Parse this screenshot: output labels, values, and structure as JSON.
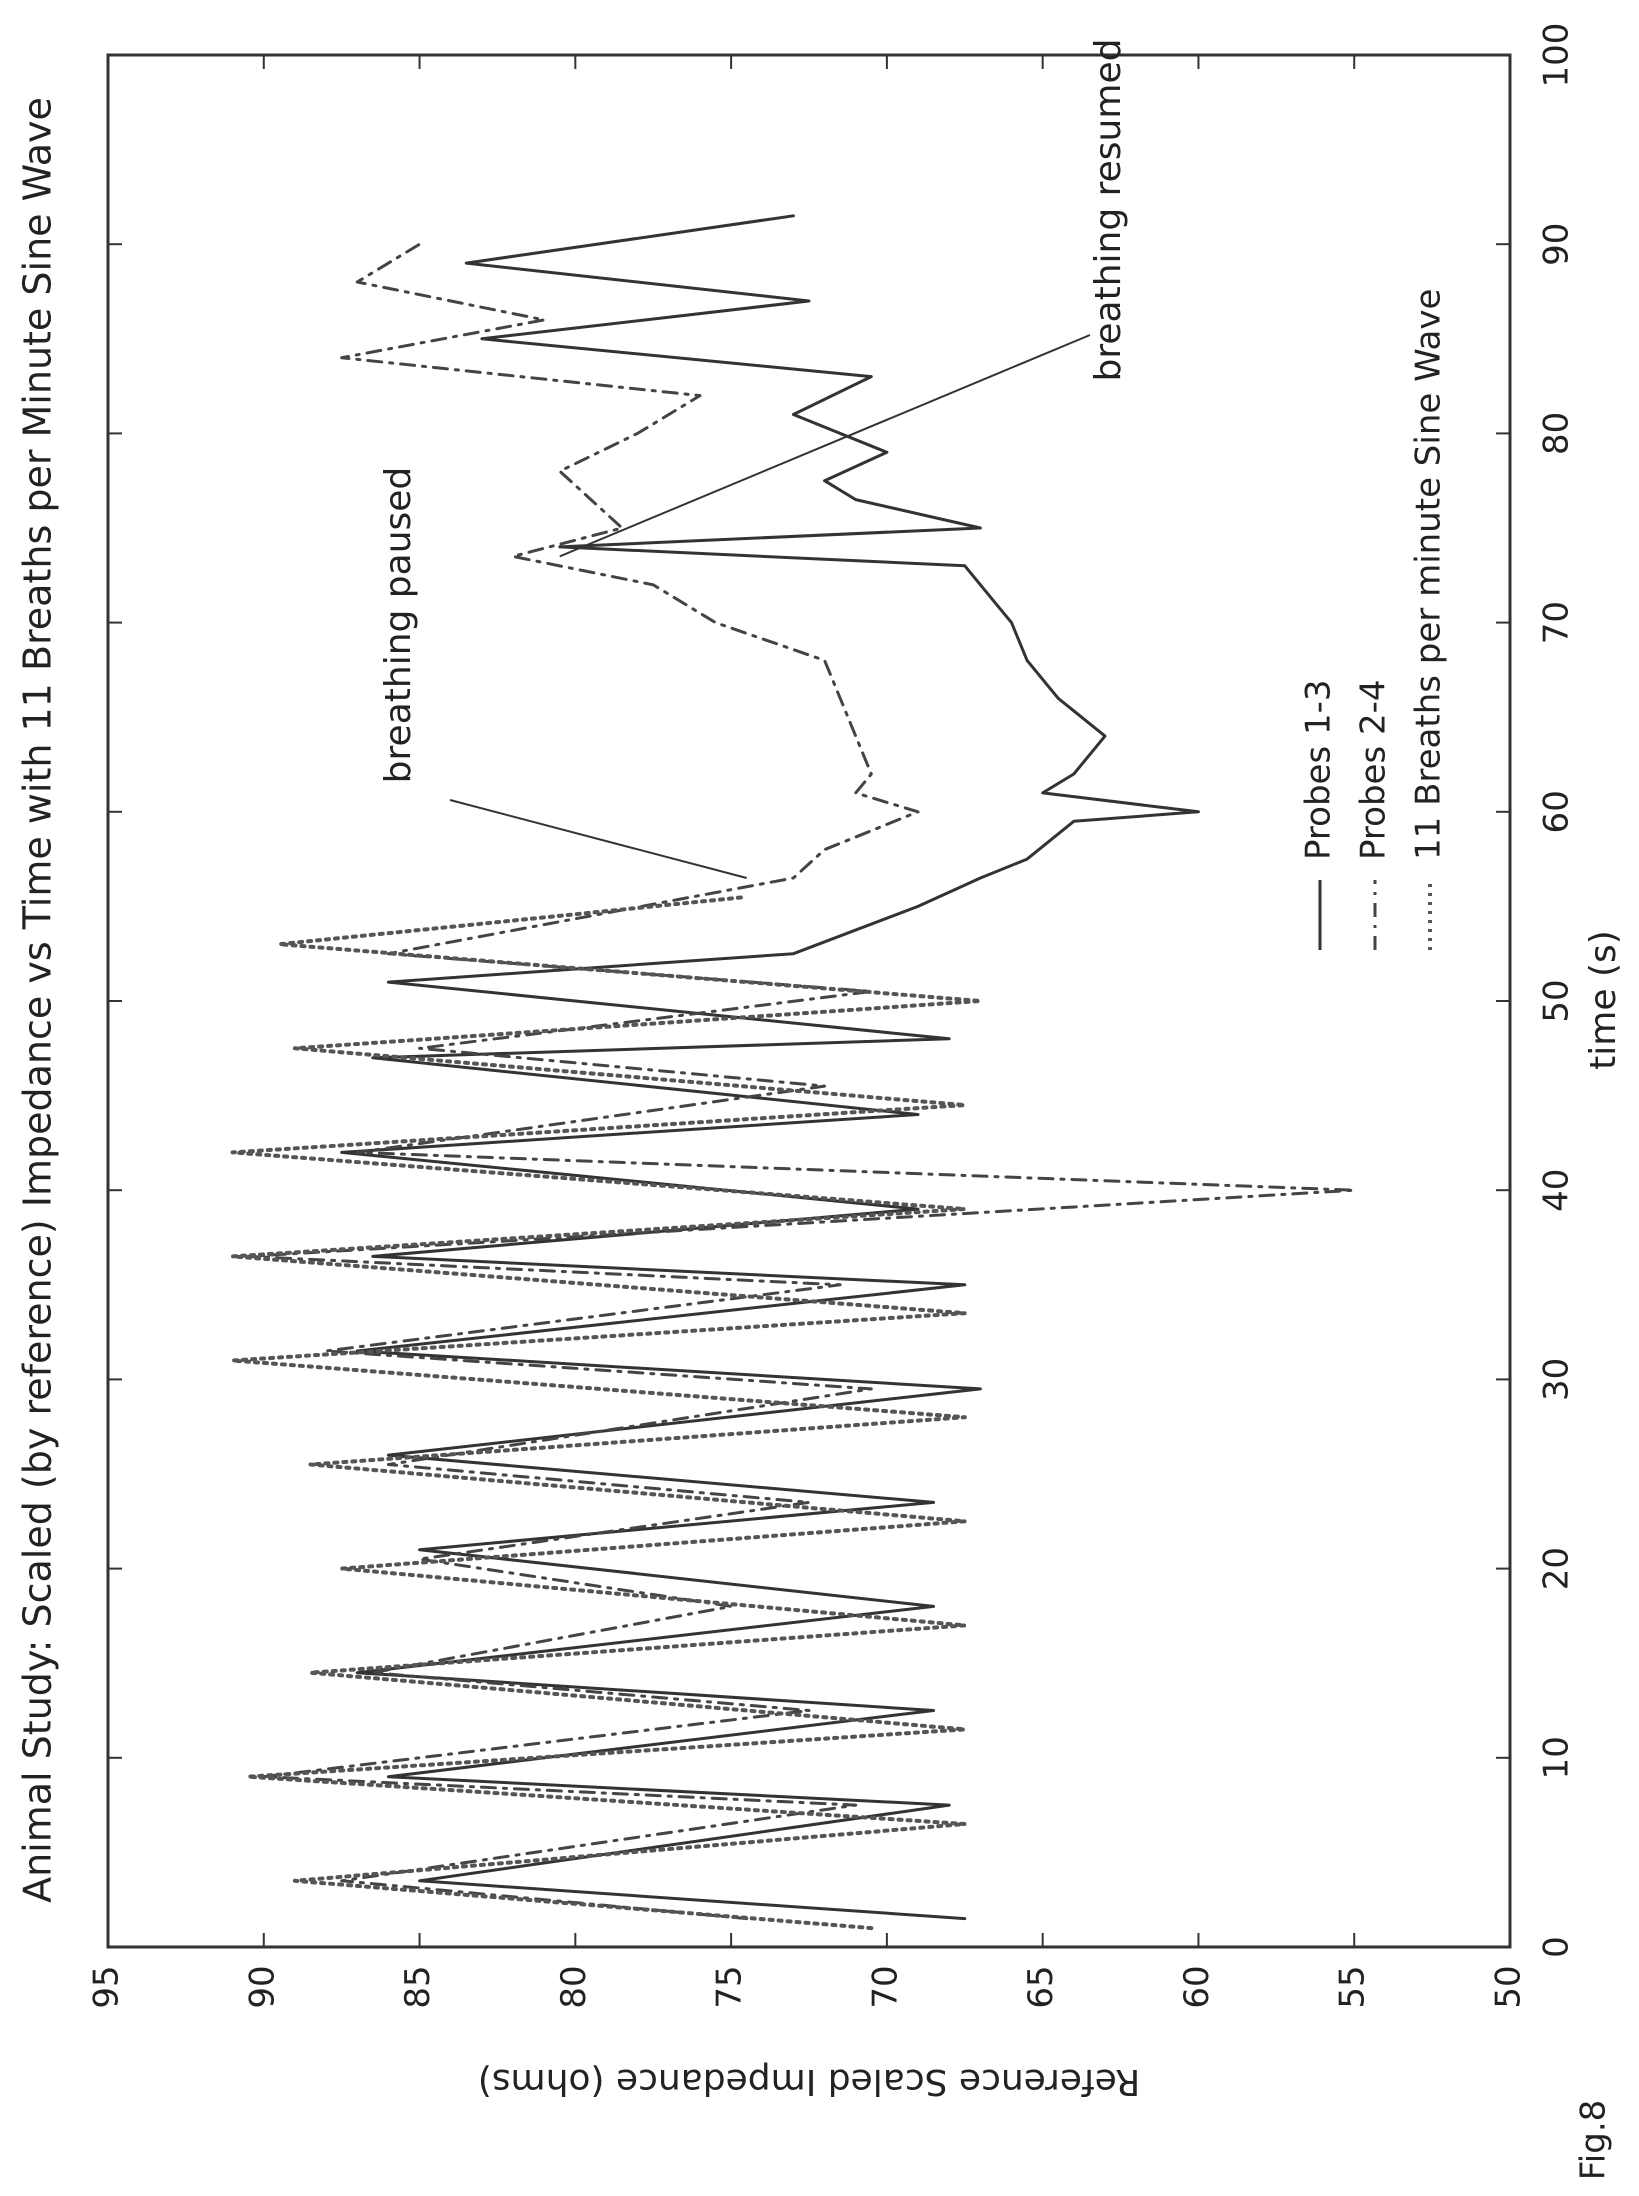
{
  "figure_label": "Fig.8",
  "chart_data": {
    "type": "line",
    "orientation": "rotated 90 degrees counter-clockwise",
    "title": "Animal Study: Scaled (by reference) Impedance vs Time with 11 Breaths per Minute Sine Wave",
    "xlabel": "time (s)",
    "ylabel": "Reference Scaled Impedance (ohms)",
    "xlim": [
      0,
      100
    ],
    "ylim": [
      50,
      95
    ],
    "xticks": [
      0,
      10,
      20,
      30,
      40,
      50,
      60,
      70,
      80,
      90,
      100
    ],
    "yticks": [
      50,
      55,
      60,
      65,
      70,
      75,
      80,
      85,
      90,
      95
    ],
    "grid": false,
    "legend_position": "bottom-right",
    "legend": [
      "Probes 1-3",
      "Probes 2-4",
      "11 Breaths per minute Sine Wave"
    ],
    "series": [
      {
        "name": "Probes 1-3",
        "style": "solid",
        "color": "#333333",
        "x": [
          1.5,
          3.5,
          7.5,
          9.0,
          12.5,
          14.5,
          18.0,
          21.0,
          23.5,
          26.0,
          29.5,
          31.5,
          35.0,
          36.5,
          39.0,
          42.0,
          44.0,
          47.0,
          48.0,
          51.0,
          52.5,
          55.0,
          56.5,
          57.5,
          59.5,
          60.0,
          61.0,
          62.0,
          64.0,
          66.0,
          68.0,
          70.0,
          71.0,
          72.0,
          73.0,
          74.0,
          75.0,
          76.5,
          77.5,
          79.0,
          81.0,
          83.0,
          85.0,
          87.0,
          89.0,
          91.5
        ],
        "y": [
          67.5,
          85.0,
          68.0,
          86.0,
          68.5,
          87.0,
          68.5,
          85.0,
          68.5,
          86.0,
          67.0,
          87.0,
          67.5,
          86.5,
          69.0,
          87.5,
          69.0,
          86.5,
          68.0,
          86.0,
          73.0,
          69.0,
          67.0,
          65.5,
          64.0,
          60.0,
          65.0,
          64.0,
          63.0,
          64.5,
          65.5,
          66.0,
          66.5,
          67.0,
          67.5,
          80.5,
          67.0,
          71.0,
          72.0,
          70.0,
          73.0,
          70.5,
          83.0,
          72.5,
          83.5,
          73.0
        ]
      },
      {
        "name": "Probes 2-4",
        "style": "dash-dot",
        "color": "#444444",
        "x": [
          1.5,
          3.5,
          7.5,
          9.0,
          12.5,
          14.5,
          18.0,
          20.5,
          23.5,
          25.5,
          29.5,
          31.5,
          35.0,
          36.5,
          40.0,
          42.0,
          45.5,
          47.5,
          50.5,
          52.5,
          56.5,
          58.0,
          60.0,
          61.0,
          62.0,
          64.0,
          66.0,
          68.0,
          70.0,
          72.0,
          73.5,
          75.0,
          76.5,
          78.0,
          80.0,
          82.0,
          84.0,
          86.0,
          88.0,
          90.0
        ],
        "y": [
          74.5,
          87.5,
          71.0,
          90.0,
          72.5,
          86.5,
          75.0,
          85.0,
          72.5,
          86.0,
          70.5,
          88.0,
          71.5,
          90.5,
          55.0,
          87.0,
          72.0,
          85.0,
          70.5,
          86.0,
          73.0,
          72.0,
          69.0,
          71.0,
          70.5,
          71.0,
          71.5,
          72.0,
          75.5,
          77.5,
          82.0,
          78.5,
          79.5,
          80.5,
          78.0,
          76.0,
          87.5,
          81.0,
          87.0,
          85.0
        ]
      },
      {
        "name": "11 Breaths per minute Sine Wave",
        "style": "dotted",
        "color": "#555555",
        "x": [
          1.0,
          3.5,
          6.5,
          9.0,
          11.5,
          14.5,
          17.0,
          20.0,
          22.5,
          25.5,
          28.0,
          31.0,
          33.5,
          36.5,
          39.0,
          42.0,
          44.5,
          47.5,
          50.0,
          53.0,
          55.5
        ],
        "y": [
          70.5,
          89.0,
          67.5,
          90.5,
          67.5,
          88.5,
          67.5,
          87.5,
          67.5,
          88.5,
          67.5,
          91.0,
          67.5,
          91.0,
          67.5,
          91.0,
          67.5,
          89.0,
          67.0,
          89.5,
          74.5
        ]
      }
    ],
    "annotations": [
      {
        "text": "breathing paused",
        "x": 56.5,
        "y": 74.5
      },
      {
        "text": "breathing resumed",
        "x": 73.5,
        "y": 80.5
      }
    ]
  }
}
